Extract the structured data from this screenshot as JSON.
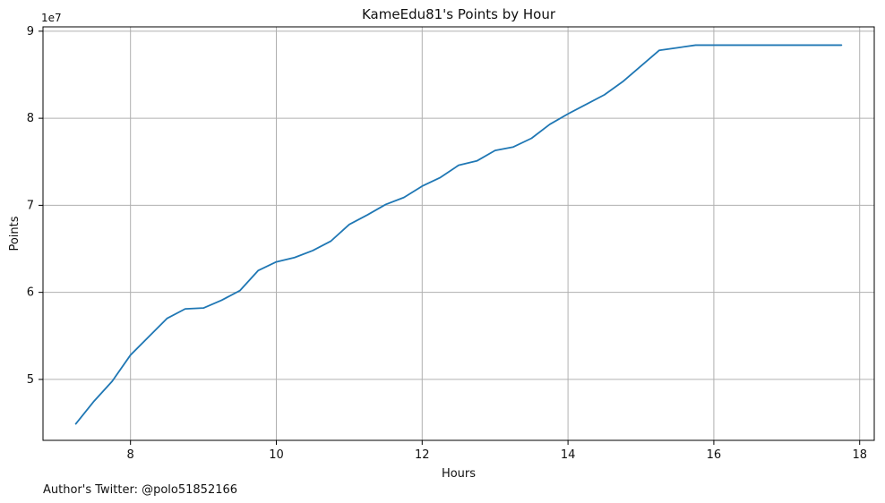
{
  "chart_data": {
    "type": "line",
    "title": "KameEdu81's Points by Hour",
    "xlabel": "Hours",
    "ylabel": "Points",
    "xlim": [
      6.8,
      18.2
    ],
    "ylim": [
      43000000,
      90500000
    ],
    "x_ticks": [
      8,
      10,
      12,
      14,
      16,
      18
    ],
    "y_ticks": [
      50000000,
      60000000,
      70000000,
      80000000,
      90000000
    ],
    "y_tick_labels": [
      "5",
      "6",
      "7",
      "8",
      "9"
    ],
    "y_offset_label": "1e7",
    "grid": true,
    "line_color": "#1f77b4",
    "series": [
      {
        "x": [
          7.25,
          7.5,
          7.75,
          8.0,
          8.25,
          8.5,
          8.75,
          9.0,
          9.25,
          9.5,
          9.75,
          10.0,
          10.25,
          10.5,
          10.75,
          11.0,
          11.25,
          11.5,
          11.75,
          12.0,
          12.25,
          12.5,
          12.75,
          13.0,
          13.25,
          13.5,
          13.75,
          14.0,
          14.25,
          14.5,
          14.75,
          15.0,
          15.25,
          15.5,
          15.75,
          16.0,
          16.25,
          16.5,
          16.75,
          17.0,
          17.25,
          17.5,
          17.75
        ],
        "values": [
          44900000,
          47500000,
          49800000,
          52800000,
          54900000,
          57000000,
          58100000,
          58200000,
          59100000,
          60200000,
          62500000,
          63500000,
          64000000,
          64800000,
          65900000,
          67800000,
          68900000,
          70100000,
          70900000,
          72200000,
          73200000,
          74600000,
          75100000,
          76300000,
          76700000,
          77700000,
          79300000,
          80500000,
          81600000,
          82700000,
          84200000,
          86000000,
          87800000,
          88100000,
          88400000,
          88400000,
          88400000,
          88400000,
          88400000,
          88400000,
          88400000,
          88400000,
          88400000
        ]
      }
    ]
  },
  "footer": {
    "credit": "Author's Twitter: @polo51852166"
  }
}
